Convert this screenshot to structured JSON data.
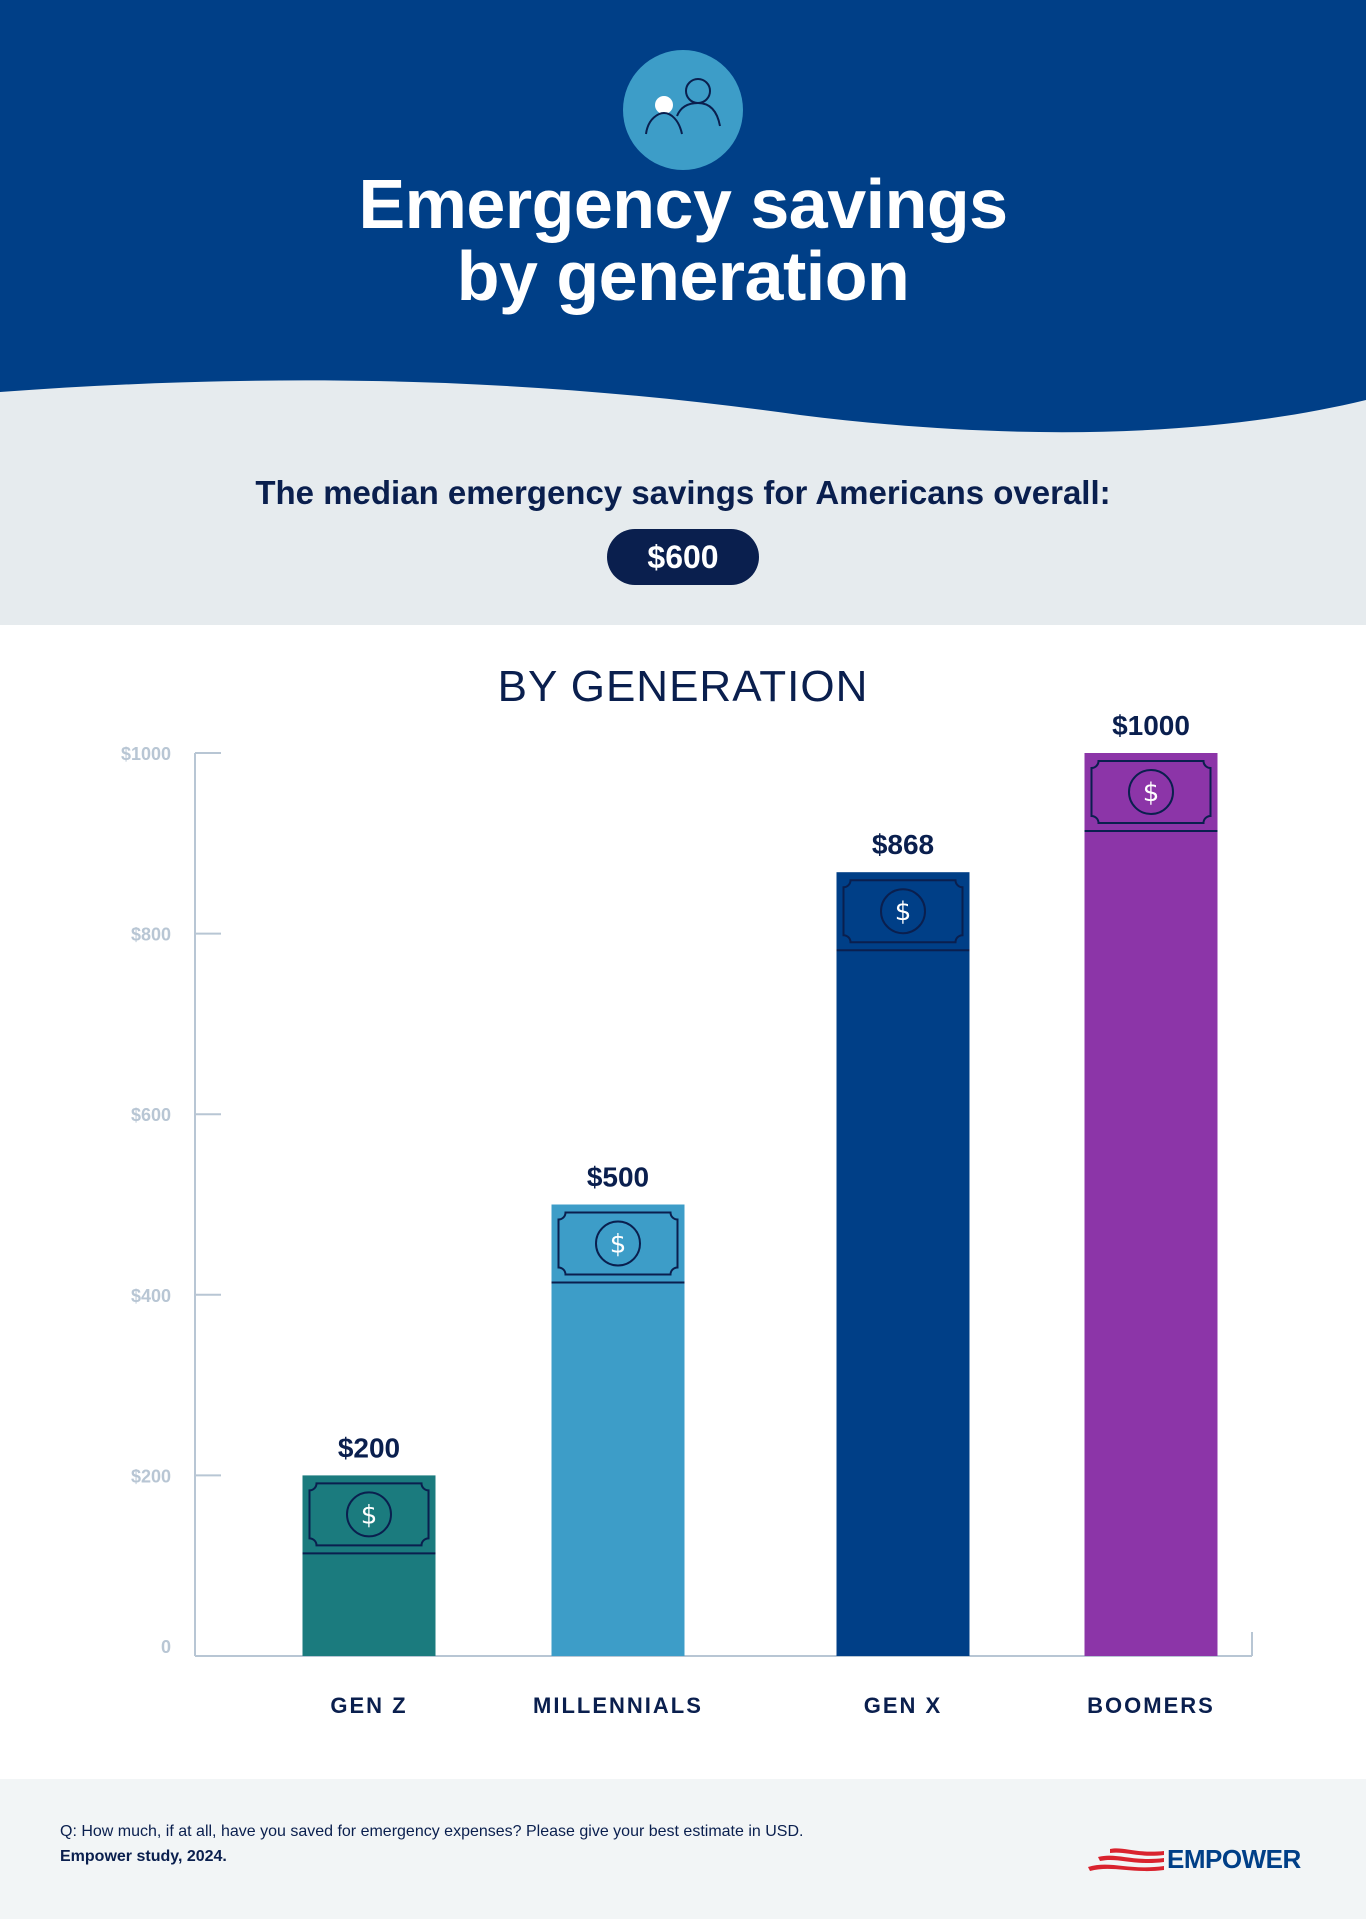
{
  "header": {
    "icon": "people-icon",
    "title_line1": "Emergency savings",
    "title_line2": "by generation"
  },
  "summary": {
    "text": "The median emergency savings for Americans overall:",
    "value": "$600"
  },
  "colors": {
    "header_bg": "#003f87",
    "icon_circle": "#3d9dc8",
    "summary_bg": "#e6ebee",
    "text_navy": "#0a1f4e",
    "axis": "#b8c6d4",
    "footer_bg": "#f2f5f6"
  },
  "chart_data": {
    "type": "bar",
    "title": "BY GENERATION",
    "categories": [
      "GEN Z",
      "MILLENNIALS",
      "GEN X",
      "BOOMERS"
    ],
    "values": [
      200,
      500,
      868,
      1000
    ],
    "value_labels": [
      "$200",
      "$500",
      "$868",
      "$1000"
    ],
    "colors": [
      "#1b7b7e",
      "#3d9dc8",
      "#003f87",
      "#8c35a8"
    ],
    "bar_icon": "dollar-bill-icon",
    "yticks": [
      0,
      200,
      400,
      600,
      800,
      1000
    ],
    "ytick_labels": [
      "0",
      "$200",
      "$400",
      "$600",
      "$800",
      "$1000"
    ],
    "ylim": [
      0,
      1000
    ],
    "grid": false,
    "xlabel": "",
    "ylabel": ""
  },
  "footer": {
    "question": "Q: How much, if at all, have you saved for emergency expenses? Please give your best estimate in USD.",
    "source": "Empower study, 2024.",
    "logo": "EMPOWER"
  }
}
